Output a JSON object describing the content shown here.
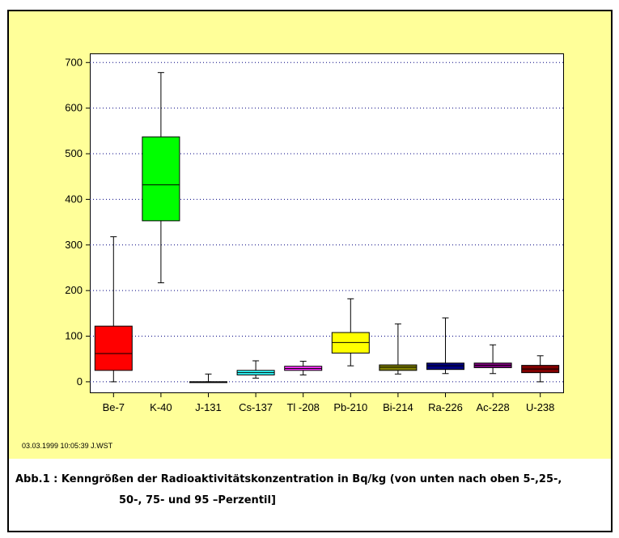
{
  "chart_data": {
    "type": "box",
    "title": "",
    "xlabel": "",
    "ylabel": "",
    "ylim": [
      -25,
      720
    ],
    "yticks": [
      0,
      100,
      200,
      300,
      400,
      500,
      600,
      700
    ],
    "grid": "horizontal-dotted",
    "categories": [
      "Be-7",
      "K-40",
      "J-131",
      "Cs-137",
      "Tl -208",
      "Pb-210",
      "Bi-214",
      "Ra-226",
      "Ac-228",
      "U-238"
    ],
    "boxes": [
      {
        "label": "Be-7",
        "p5": 0,
        "p25": 25,
        "p50": 62,
        "p75": 122,
        "p95": 318,
        "color": "#ff0000"
      },
      {
        "label": "K-40",
        "p5": 217,
        "p25": 353,
        "p50": 432,
        "p75": 537,
        "p95": 678,
        "color": "#00ff00"
      },
      {
        "label": "J-131",
        "p5": 0,
        "p25": 0,
        "p50": 0,
        "p75": 0,
        "p95": 17,
        "color": "#ffffff"
      },
      {
        "label": "Cs-137",
        "p5": 8,
        "p25": 15,
        "p50": 20,
        "p75": 25,
        "p95": 46,
        "color": "#33ffff"
      },
      {
        "label": "Tl -208",
        "p5": 15,
        "p25": 25,
        "p50": 29,
        "p75": 34,
        "p95": 45,
        "color": "#ff33ff"
      },
      {
        "label": "Pb-210",
        "p5": 35,
        "p25": 63,
        "p50": 86,
        "p75": 108,
        "p95": 182,
        "color": "#ffff00"
      },
      {
        "label": "Bi-214",
        "p5": 17,
        "p25": 25,
        "p50": 32,
        "p75": 37,
        "p95": 127,
        "color": "#808000"
      },
      {
        "label": "Ra-226",
        "p5": 18,
        "p25": 27,
        "p50": 35,
        "p75": 41,
        "p95": 140,
        "color": "#000080"
      },
      {
        "label": "Ac-228",
        "p5": 18,
        "p25": 31,
        "p50": 36,
        "p75": 41,
        "p95": 81,
        "color": "#800080"
      },
      {
        "label": "U-238",
        "p5": 0,
        "p25": 20,
        "p50": 28,
        "p75": 36,
        "p95": 57,
        "color": "#800000"
      }
    ]
  },
  "footer": {
    "stamp": "03.03.1999  10:05:39  J.WST"
  },
  "caption": {
    "line1": "Abb.1 :  Kenngrößen der Radioaktivitätskonzentration in Bq/kg  (von unten nach oben 5-,25-,",
    "line2": "50-, 75- und 95 –Perzentil]"
  }
}
